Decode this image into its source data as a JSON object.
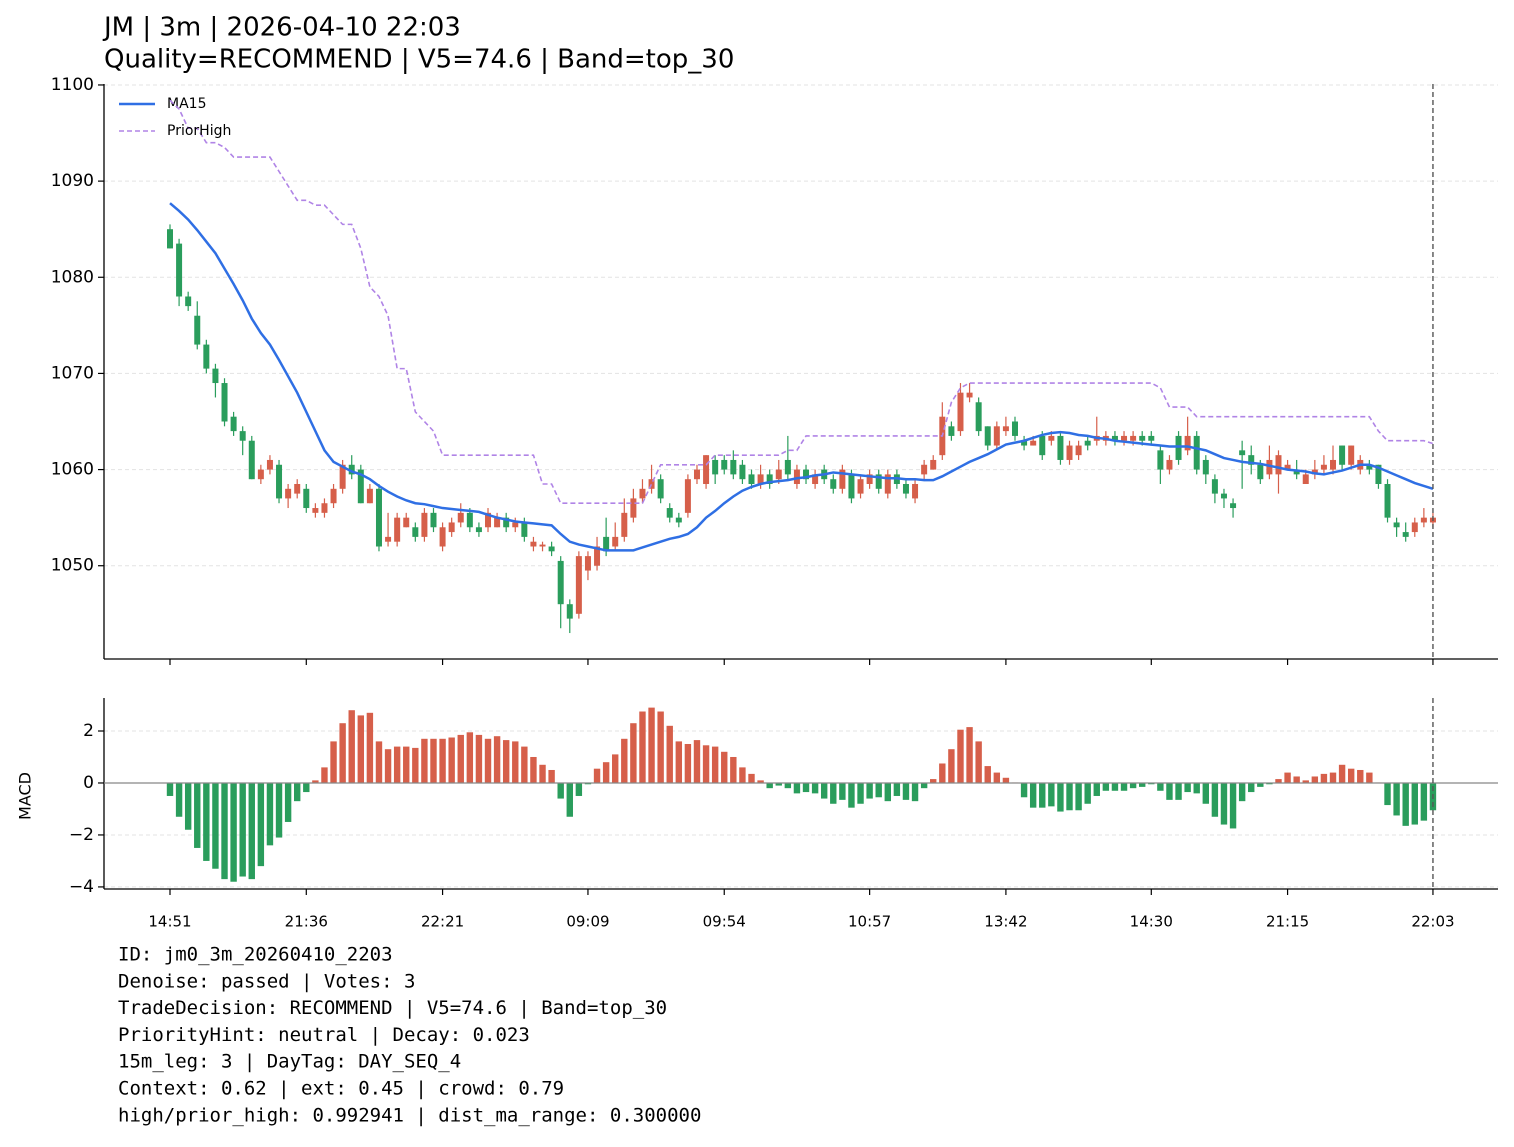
{
  "chart_data": [
    {
      "type": "candlestick",
      "title": "JM | 3m | 2026-04-10 22:03",
      "subtitle": "Quality=RECOMMEND | V5=74.6 | Band=top_30",
      "categories": [
        "14:51",
        null,
        null,
        null,
        null,
        null,
        null,
        null,
        null,
        null,
        null,
        null,
        null,
        null,
        null,
        "21:36",
        null,
        null,
        null,
        null,
        null,
        null,
        null,
        null,
        null,
        null,
        null,
        null,
        null,
        null,
        "22:21",
        null,
        null,
        null,
        null,
        null,
        null,
        null,
        null,
        null,
        null,
        null,
        null,
        null,
        null,
        null,
        "09:09",
        null,
        null,
        null,
        null,
        null,
        null,
        null,
        null,
        null,
        null,
        null,
        null,
        null,
        null,
        "09:54",
        null,
        null,
        null,
        null,
        null,
        null,
        null,
        null,
        null,
        null,
        null,
        null,
        null,
        null,
        null,
        "10:57",
        null,
        null,
        null,
        null,
        null,
        null,
        null,
        null,
        null,
        null,
        null,
        null,
        null,
        null,
        "13:42",
        null,
        null,
        null,
        null,
        null,
        null,
        null,
        null,
        null,
        null,
        null,
        null,
        null,
        null,
        null,
        "14:30",
        null,
        null,
        null,
        null,
        null,
        null,
        null,
        null,
        null,
        null,
        null,
        null,
        null,
        null,
        "21:15",
        null,
        null,
        null,
        null,
        null,
        null,
        null,
        null,
        null,
        null,
        null,
        null,
        null,
        null,
        null,
        "22:03"
      ],
      "open": [
        1085,
        1083.5,
        1078,
        1076,
        1073,
        1070.5,
        1069,
        1065.5,
        1064,
        1063,
        1059,
        1060,
        1060.5,
        1057,
        1057.5,
        1058,
        1055.5,
        1055.5,
        1056.5,
        1058,
        1060.5,
        1060,
        1056.5,
        1058,
        1052.5,
        1052.5,
        1054,
        1054,
        1053,
        1055.5,
        1052,
        1053.5,
        1054.5,
        1055.5,
        1054,
        1054,
        1054,
        1055,
        1054,
        1054.5,
        1052,
        1052,
        1052,
        1050.5,
        1046,
        1045,
        1049.5,
        1050,
        1053,
        1052,
        1053,
        1055,
        1057,
        1058,
        1059,
        1056,
        1055,
        1055.5,
        1059,
        1058.5,
        1061,
        1061,
        1061,
        1060.5,
        1059.5,
        1058.5,
        1059.5,
        1059,
        1061,
        1058.5,
        1060,
        1058.5,
        1060,
        1059,
        1058,
        1059.5,
        1057.5,
        1058.5,
        1059.5,
        1057.5,
        1059.5,
        1058.5,
        1057,
        1059.5,
        1060,
        1061.5,
        1064.5,
        1064,
        1067.5,
        1067,
        1064.5,
        1062.5,
        1064,
        1065,
        1063,
        1062.5,
        1063.5,
        1063,
        1063.5,
        1061,
        1061.5,
        1063,
        1063,
        1063,
        1063.5,
        1063,
        1063,
        1063.5,
        1063.5,
        1062,
        1060,
        1063.5,
        1062,
        1063.5,
        1061,
        1059,
        1057.5,
        1056.5,
        1062,
        1061.5,
        1060.5,
        1059.5,
        1059.5,
        1060,
        1060,
        1058.5,
        1059.5,
        1060,
        1060,
        1062.5,
        1060.5,
        1060,
        1060.5,
        1060.5,
        1058.5,
        1054.5,
        1053.5,
        1053.5,
        1054.5,
        1054.5
      ],
      "high": [
        1085.5,
        1084,
        1078.5,
        1077.5,
        1073.5,
        1071,
        1069.5,
        1066,
        1064.5,
        1063.5,
        1060.5,
        1061.5,
        1061,
        1058.5,
        1059,
        1058.5,
        1056.5,
        1057,
        1058.5,
        1061,
        1061.5,
        1060.5,
        1058.5,
        1058.5,
        1055.5,
        1055.5,
        1055.5,
        1054.5,
        1056,
        1056,
        1054.5,
        1055,
        1056.5,
        1056,
        1054.5,
        1056,
        1055.5,
        1055.5,
        1055,
        1055,
        1053,
        1052.5,
        1052.5,
        1051,
        1046.5,
        1051.5,
        1051.5,
        1053,
        1055,
        1054.5,
        1057,
        1058,
        1059,
        1060.5,
        1059.5,
        1056.5,
        1055.5,
        1059.5,
        1060.5,
        1061.5,
        1061.5,
        1061.5,
        1062,
        1061,
        1060,
        1060.5,
        1060,
        1061,
        1063.5,
        1060.5,
        1060.5,
        1060,
        1060.5,
        1059.5,
        1060.5,
        1060,
        1059.5,
        1060,
        1060,
        1060,
        1060,
        1059,
        1059,
        1061,
        1061.5,
        1067,
        1065,
        1069,
        1069,
        1067.5,
        1064.5,
        1065,
        1065.5,
        1065.5,
        1063.5,
        1063.5,
        1064,
        1064,
        1064,
        1063,
        1063,
        1063.5,
        1065.5,
        1064,
        1064,
        1064,
        1064,
        1064,
        1064,
        1062.5,
        1061.5,
        1064,
        1065.5,
        1064,
        1061.5,
        1059.5,
        1058,
        1057,
        1063,
        1062.5,
        1061,
        1062.5,
        1062,
        1061,
        1061,
        1060,
        1061,
        1061.5,
        1062.5,
        1062.5,
        1062.5,
        1061.5,
        1061,
        1060.5,
        1059,
        1055,
        1054.5,
        1055,
        1056,
        1055.5
      ],
      "low": [
        1083,
        1077,
        1076.5,
        1072.5,
        1070,
        1067.5,
        1064.5,
        1063.5,
        1061.5,
        1059,
        1058.5,
        1059.5,
        1056.5,
        1056,
        1057,
        1055.5,
        1055,
        1055,
        1056,
        1057.5,
        1059,
        1056.5,
        1056.5,
        1051.5,
        1052,
        1052,
        1054,
        1052.5,
        1052.5,
        1053.5,
        1051.5,
        1053,
        1054,
        1053.5,
        1053,
        1053.5,
        1054,
        1053.5,
        1053.5,
        1052.5,
        1051.5,
        1051.5,
        1051,
        1043.5,
        1043,
        1044.5,
        1048.5,
        1049.5,
        1051,
        1051.5,
        1052.5,
        1054.5,
        1056.5,
        1057.5,
        1056.5,
        1054.5,
        1054,
        1055,
        1058.5,
        1058,
        1058.5,
        1059.5,
        1059,
        1058.5,
        1058,
        1058,
        1058,
        1058.5,
        1059,
        1058,
        1058.5,
        1058,
        1058.5,
        1057.5,
        1057.5,
        1056.5,
        1057,
        1058,
        1057.5,
        1057,
        1058,
        1057,
        1056.5,
        1059,
        1060,
        1061,
        1063,
        1063.5,
        1067,
        1063.5,
        1062,
        1062,
        1063.5,
        1063,
        1062,
        1062.5,
        1061,
        1062.5,
        1060.5,
        1060.5,
        1061,
        1062,
        1062.5,
        1062.5,
        1062.5,
        1062.5,
        1062.5,
        1062.5,
        1062.5,
        1058.5,
        1059.5,
        1060.5,
        1061.5,
        1059.5,
        1058.5,
        1056.5,
        1056,
        1055,
        1058,
        1059.5,
        1058.5,
        1059,
        1057.5,
        1060,
        1059,
        1058.5,
        1059,
        1059.5,
        1059.5,
        1060,
        1060,
        1059.5,
        1059.5,
        1058,
        1054.5,
        1053,
        1052.5,
        1053,
        1054,
        1054
      ],
      "close": [
        1083,
        1078,
        1077,
        1073,
        1070.5,
        1069,
        1065,
        1064,
        1063,
        1059,
        1060,
        1061,
        1057,
        1058,
        1058.5,
        1056,
        1056,
        1056.5,
        1058,
        1060.5,
        1059.5,
        1056.5,
        1058,
        1052,
        1053,
        1055,
        1055,
        1053,
        1055.5,
        1054,
        1054,
        1054.5,
        1055.5,
        1054,
        1053.5,
        1055.5,
        1055,
        1054,
        1054.5,
        1053,
        1052.5,
        1052.2,
        1051.5,
        1046,
        1044.5,
        1051,
        1051,
        1052,
        1051.5,
        1053,
        1055.5,
        1057,
        1058,
        1059,
        1057,
        1055,
        1054.5,
        1059,
        1060,
        1061.5,
        1059.5,
        1060,
        1059.5,
        1059,
        1058.5,
        1059.5,
        1058.5,
        1060,
        1059.5,
        1060,
        1059,
        1059.5,
        1059,
        1058,
        1060,
        1057,
        1059,
        1059.5,
        1058,
        1059.5,
        1058.5,
        1057.5,
        1058.5,
        1060.5,
        1061,
        1065.5,
        1063.5,
        1068,
        1068,
        1064,
        1062.5,
        1064.5,
        1064.5,
        1063.5,
        1062.5,
        1063,
        1061.5,
        1063.5,
        1061,
        1062.5,
        1062.5,
        1062.5,
        1063.5,
        1063.5,
        1063,
        1063.5,
        1063.5,
        1063,
        1063,
        1060,
        1061,
        1061,
        1063.5,
        1060,
        1059.5,
        1057.5,
        1057,
        1056,
        1061.5,
        1060.5,
        1059,
        1061,
        1061.5,
        1060.5,
        1059.5,
        1059.5,
        1060,
        1060.5,
        1061,
        1060.5,
        1062.5,
        1061,
        1060,
        1058.5,
        1055,
        1054,
        1053,
        1054.5,
        1055,
        1055
      ],
      "up_color": "#d65f4a",
      "down_color": "#2a9d5c",
      "series": [
        {
          "name": "MA15",
          "color": "#2f6fe4",
          "dashed": false,
          "values": [
            1087.7,
            1086.9,
            1086,
            1084.9,
            1083.7,
            1082.5,
            1080.9,
            1079.3,
            1077.6,
            1075.7,
            1074.2,
            1073,
            1071.4,
            1069.7,
            1068,
            1066,
            1064,
            1062,
            1060.8,
            1060.3,
            1059.8,
            1059.5,
            1059,
            1058.3,
            1057.7,
            1057.2,
            1056.8,
            1056.5,
            1056.4,
            1056.2,
            1056,
            1055.9,
            1055.8,
            1055.7,
            1055.6,
            1055.3,
            1055,
            1054.8,
            1054.6,
            1054.5,
            1054.4,
            1054.3,
            1054.2,
            1053.3,
            1052.5,
            1052.2,
            1052,
            1051.8,
            1051.6,
            1051.6,
            1051.6,
            1051.6,
            1051.9,
            1052.2,
            1052.5,
            1052.8,
            1053,
            1053.3,
            1054,
            1055,
            1055.7,
            1056.5,
            1057.2,
            1057.8,
            1058.2,
            1058.5,
            1058.7,
            1058.8,
            1058.9,
            1059.1,
            1059.2,
            1059.4,
            1059.5,
            1059.7,
            1059.6,
            1059.5,
            1059.4,
            1059.3,
            1059.2,
            1059.1,
            1059.1,
            1059,
            1059,
            1058.9,
            1058.9,
            1059.3,
            1059.8,
            1060.3,
            1060.8,
            1061.2,
            1061.6,
            1062.1,
            1062.6,
            1062.8,
            1063,
            1063.3,
            1063.6,
            1063.8,
            1063.9,
            1063.8,
            1063.6,
            1063.5,
            1063.3,
            1063.2,
            1063,
            1062.9,
            1062.8,
            1062.7,
            1062.6,
            1062.5,
            1062.4,
            1062.4,
            1062.4,
            1062.2,
            1062,
            1061.6,
            1061.2,
            1061,
            1060.8,
            1060.7,
            1060.6,
            1060.4,
            1060.2,
            1060,
            1059.9,
            1059.8,
            1059.6,
            1059.5,
            1059.7,
            1059.9,
            1060.2,
            1060.5,
            1060.5,
            1060.2,
            1059.8,
            1059.4,
            1059,
            1058.6,
            1058.3,
            1058
          ]
        },
        {
          "name": "PriorHigh",
          "color": "#b084e6",
          "dashed": true,
          "values": [
            1098.4,
            1097.5,
            1095.5,
            1095.5,
            1094,
            1094,
            1093.5,
            1092.5,
            1092.5,
            1092.5,
            1092.5,
            1092.5,
            1091,
            1089.5,
            1088,
            1088,
            1087.5,
            1087.5,
            1086.5,
            1085.5,
            1085.5,
            1083,
            1079,
            1078,
            1076,
            1070.5,
            1070.5,
            1066,
            1065,
            1064,
            1061.5,
            1061.5,
            1061.5,
            1061.5,
            1061.5,
            1061.5,
            1061.5,
            1061.5,
            1061.5,
            1061.5,
            1061.5,
            1058.5,
            1058.5,
            1056.5,
            1056.5,
            1056.5,
            1056.5,
            1056.5,
            1056.5,
            1056.5,
            1056.5,
            1056.5,
            1056.5,
            1058.5,
            1060.5,
            1060.5,
            1060.5,
            1060.5,
            1060.5,
            1060.5,
            1061.5,
            1061.5,
            1061.5,
            1061.5,
            1061.5,
            1061.5,
            1061.5,
            1061.5,
            1062,
            1062,
            1063.5,
            1063.5,
            1063.5,
            1063.5,
            1063.5,
            1063.5,
            1063.5,
            1063.5,
            1063.5,
            1063.5,
            1063.5,
            1063.5,
            1063.5,
            1063.5,
            1063.5,
            1063.5,
            1067,
            1068.5,
            1069,
            1069,
            1069,
            1069,
            1069,
            1069,
            1069,
            1069,
            1069,
            1069,
            1069,
            1069,
            1069,
            1069,
            1069,
            1069,
            1069,
            1069,
            1069,
            1069,
            1069,
            1068.5,
            1066.5,
            1066.5,
            1066.5,
            1065.5,
            1065.5,
            1065.5,
            1065.5,
            1065.5,
            1065.5,
            1065.5,
            1065.5,
            1065.5,
            1065.5,
            1065.5,
            1065.5,
            1065.5,
            1065.5,
            1065.5,
            1065.5,
            1065.5,
            1065.5,
            1065.5,
            1065.5,
            1064,
            1063,
            1063,
            1063,
            1063,
            1063,
            1062.7
          ]
        }
      ],
      "ylim": [
        1040.3,
        1100.1
      ],
      "yticks": [
        1050,
        1060,
        1070,
        1080,
        1090,
        1100
      ],
      "grid": true,
      "legend": "upper left",
      "annotations": [
        "ID: jm0_3m_20260410_2203",
        "Denoise: passed | Votes: 3",
        "TradeDecision: RECOMMEND | V5=74.6 | Band=top_30",
        "PriorityHint: neutral | Decay: 0.023",
        "15m_leg: 3 | DayTag: DAY_SEQ_4",
        "Context: 0.62 | ext: 0.45 | crowd: 0.79",
        "high/prior_high: 0.992941 | dist_ma_range: 0.300000"
      ]
    },
    {
      "type": "bar",
      "ylabel": "MACD",
      "pos_color": "#d65f4a",
      "neg_color": "#2a9d5c",
      "values": [
        -0.5,
        -1.3,
        -1.8,
        -2.5,
        -3.0,
        -3.3,
        -3.7,
        -3.8,
        -3.6,
        -3.7,
        -3.2,
        -2.4,
        -2.1,
        -1.5,
        -0.7,
        -0.35,
        0.1,
        0.6,
        1.6,
        2.3,
        2.8,
        2.6,
        2.7,
        1.6,
        1.3,
        1.4,
        1.4,
        1.35,
        1.7,
        1.7,
        1.7,
        1.75,
        1.85,
        1.95,
        1.85,
        1.7,
        1.8,
        1.65,
        1.6,
        1.4,
        1.0,
        0.7,
        0.5,
        -0.6,
        -1.3,
        -0.5,
        -0.05,
        0.55,
        0.8,
        1.1,
        1.7,
        2.3,
        2.75,
        2.9,
        2.75,
        2.2,
        1.6,
        1.5,
        1.65,
        1.45,
        1.4,
        1.2,
        1.0,
        0.6,
        0.35,
        0.1,
        -0.2,
        -0.1,
        -0.2,
        -0.4,
        -0.35,
        -0.4,
        -0.6,
        -0.8,
        -0.65,
        -0.95,
        -0.8,
        -0.6,
        -0.55,
        -0.7,
        -0.5,
        -0.65,
        -0.7,
        -0.2,
        0.15,
        0.75,
        1.3,
        2.05,
        2.15,
        1.6,
        0.65,
        0.4,
        0.2,
        0.02,
        -0.55,
        -0.95,
        -0.95,
        -0.9,
        -1.1,
        -1.05,
        -1.05,
        -0.8,
        -0.5,
        -0.3,
        -0.3,
        -0.3,
        -0.2,
        -0.15,
        -0.05,
        -0.3,
        -0.65,
        -0.65,
        -0.35,
        -0.4,
        -0.8,
        -1.3,
        -1.6,
        -1.75,
        -0.7,
        -0.35,
        -0.15,
        -0.05,
        0.15,
        0.4,
        0.25,
        0.1,
        0.25,
        0.35,
        0.4,
        0.7,
        0.55,
        0.5,
        0.4,
        0.02,
        -0.85,
        -1.25,
        -1.65,
        -1.6,
        -1.45,
        -1.05
      ],
      "ylim": [
        -4.08,
        3.27
      ],
      "yticks": [
        {
          "value": -4,
          "label": "−4"
        },
        {
          "value": -2,
          "label": "−2"
        },
        0,
        2
      ],
      "grid": true
    }
  ]
}
